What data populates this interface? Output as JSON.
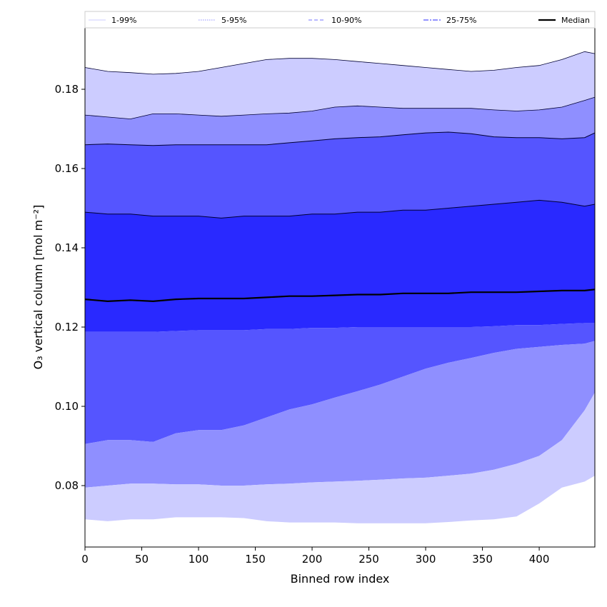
{
  "chart_data": {
    "type": "area",
    "title": "",
    "xlabel": "Binned row index",
    "ylabel": "O₃ vertical column [mol m⁻²]",
    "xlim": [
      0,
      449
    ],
    "ylim": [
      0.0645,
      0.1955
    ],
    "xticks": [
      0,
      50,
      100,
      150,
      200,
      250,
      300,
      350,
      400
    ],
    "yticks": [
      0.08,
      0.1,
      0.12,
      0.14,
      0.16,
      0.18
    ],
    "grid": false,
    "legend_position": "top",
    "x": [
      0,
      20,
      40,
      60,
      80,
      100,
      120,
      140,
      160,
      180,
      200,
      220,
      240,
      260,
      280,
      300,
      320,
      340,
      360,
      380,
      400,
      420,
      440,
      449
    ],
    "bands": [
      {
        "name": "1-99%",
        "line_style": "solid-thin",
        "fill_color": "#ccccff",
        "lower": [
          0.0715,
          0.071,
          0.0715,
          0.0715,
          0.072,
          0.072,
          0.072,
          0.0718,
          0.071,
          0.0707,
          0.0707,
          0.0707,
          0.0705,
          0.0705,
          0.0705,
          0.0705,
          0.0708,
          0.0712,
          0.0715,
          0.0722,
          0.0755,
          0.0795,
          0.081,
          0.0825
        ],
        "upper": [
          0.1855,
          0.1845,
          0.1842,
          0.1838,
          0.184,
          0.1845,
          0.1855,
          0.1865,
          0.1875,
          0.1878,
          0.1878,
          0.1875,
          0.187,
          0.1865,
          0.186,
          0.1855,
          0.185,
          0.1845,
          0.1848,
          0.1855,
          0.186,
          0.1875,
          0.1895,
          0.189
        ]
      },
      {
        "name": "5-95%",
        "line_style": "dotted-thin",
        "fill_color": "#8f8fff",
        "lower": [
          0.0795,
          0.08,
          0.0805,
          0.0805,
          0.0803,
          0.0803,
          0.08,
          0.08,
          0.0803,
          0.0805,
          0.0808,
          0.081,
          0.0812,
          0.0815,
          0.0818,
          0.082,
          0.0825,
          0.083,
          0.084,
          0.0855,
          0.0875,
          0.0915,
          0.099,
          0.1035
        ]
      },
      {
        "name": "10-90%",
        "line_style": "dashed",
        "fill_color": "#5555ff",
        "lower": [
          0.0905,
          0.0915,
          0.0915,
          0.091,
          0.0932,
          0.094,
          0.094,
          0.0952,
          0.0972,
          0.0992,
          0.1005,
          0.1022,
          0.1038,
          0.1055,
          0.1075,
          0.1095,
          0.111,
          0.1122,
          0.1135,
          0.1145,
          0.115,
          0.1155,
          0.1158,
          0.1165
        ],
        "upper": [
          0.1735,
          0.173,
          0.1725,
          0.1738,
          0.1738,
          0.1735,
          0.1732,
          0.1735,
          0.1738,
          0.174,
          0.1745,
          0.1755,
          0.1758,
          0.1755,
          0.1752,
          0.1752,
          0.1752,
          0.1752,
          0.1748,
          0.1745,
          0.1748,
          0.1755,
          0.1772,
          0.178
        ]
      },
      {
        "name": "25-75%",
        "line_style": "dashdot",
        "fill_color": "#2929ff",
        "lower": [
          0.1188,
          0.1188,
          0.1188,
          0.1188,
          0.119,
          0.1192,
          0.1192,
          0.1192,
          0.1195,
          0.1195,
          0.1198,
          0.1198,
          0.12,
          0.12,
          0.12,
          0.12,
          0.12,
          0.12,
          0.1202,
          0.1205,
          0.1205,
          0.1208,
          0.121,
          0.121
        ],
        "upper": [
          0.166,
          0.1662,
          0.166,
          0.1658,
          0.166,
          0.166,
          0.166,
          0.166,
          0.166,
          0.1665,
          0.167,
          0.1675,
          0.1678,
          0.168,
          0.1685,
          0.169,
          0.1692,
          0.1688,
          0.168,
          0.1678,
          0.1678,
          0.1675,
          0.1678,
          0.169
        ]
      }
    ],
    "series": [
      {
        "name": "Median",
        "color": "#000000",
        "values": [
          0.127,
          0.1265,
          0.1268,
          0.1265,
          0.127,
          0.1272,
          0.1272,
          0.1272,
          0.1275,
          0.1278,
          0.1278,
          0.128,
          0.1282,
          0.1282,
          0.1285,
          0.1285,
          0.1285,
          0.1288,
          0.1288,
          0.1288,
          0.129,
          0.1292,
          0.1292,
          0.1295
        ]
      }
    ],
    "inner_line": {
      "values": [
        0.149,
        0.1485,
        0.1485,
        0.148,
        0.148,
        0.148,
        0.1475,
        0.148,
        0.148,
        0.148,
        0.1485,
        0.1485,
        0.149,
        0.149,
        0.1495,
        0.1495,
        0.15,
        0.1505,
        0.151,
        0.1515,
        0.152,
        0.1515,
        0.1505,
        0.151
      ]
    }
  }
}
